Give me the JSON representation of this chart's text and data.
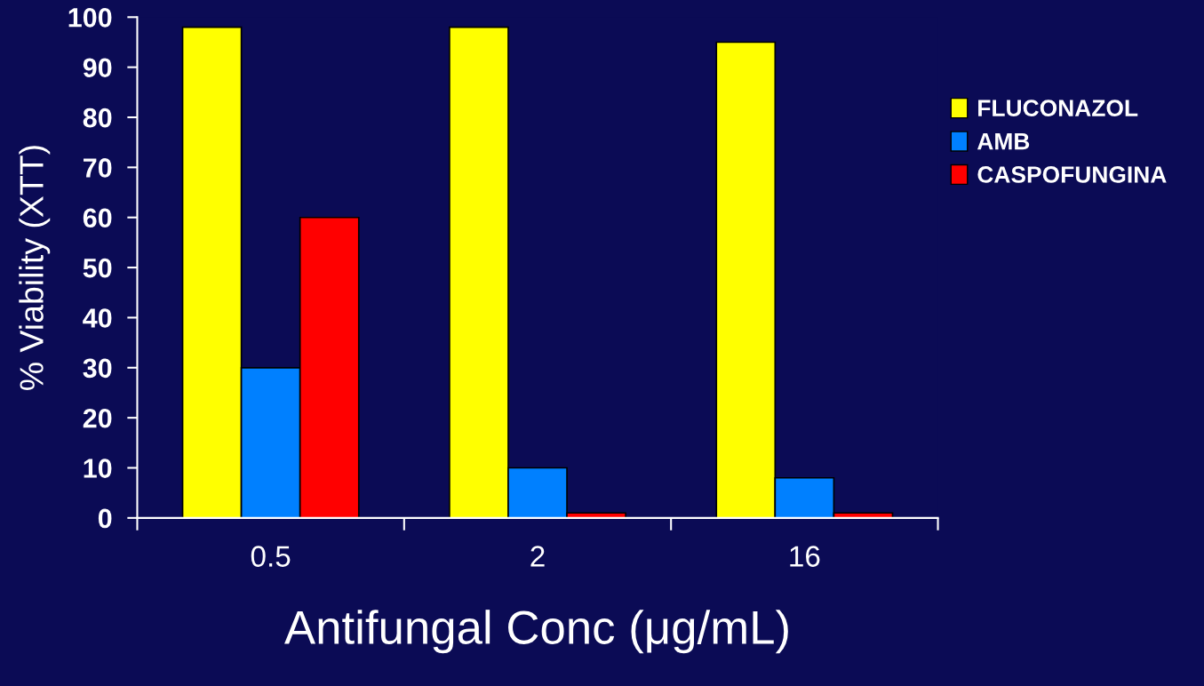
{
  "chart_data": {
    "type": "bar",
    "xlabel": "Antifungal Conc (μg/mL)",
    "ylabel": "% Viability (XTT)",
    "categories": [
      "0.5",
      "2",
      "16"
    ],
    "series": [
      {
        "name": "FLUCONAZOL",
        "color": "#ffff00",
        "values": [
          98,
          98,
          95
        ]
      },
      {
        "name": "AMB",
        "color": "#0080ff",
        "values": [
          30,
          10,
          8
        ]
      },
      {
        "name": "CASPOFUNGINA",
        "color": "#ff0000",
        "values": [
          60,
          1,
          1
        ]
      }
    ],
    "ylim": [
      0,
      100
    ],
    "yticks": [
      0,
      10,
      20,
      30,
      40,
      50,
      60,
      70,
      80,
      90,
      100
    ],
    "grid": false,
    "legend": "right"
  }
}
